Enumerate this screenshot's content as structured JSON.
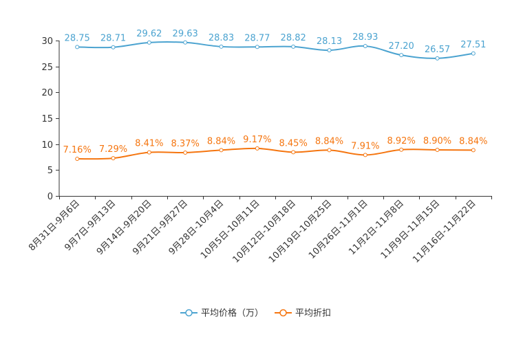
{
  "chart_data": {
    "type": "line",
    "title": "",
    "xlabel": "",
    "ylabel": "",
    "ylim": [
      0,
      30
    ],
    "yticks": [
      0,
      5,
      10,
      15,
      20,
      25,
      30
    ],
    "grid": false,
    "legend_position": "bottom-center",
    "categories": [
      "8月31日-9月6日",
      "9月7日-9月13日",
      "9月14日-9月20日",
      "9月21日-9月27日",
      "9月28日-10月4日",
      "10月5日-10月11日",
      "10月12日-10月18日",
      "10月19日-10月25日",
      "10月26日-11月1日",
      "11月2日-11月8日",
      "11月9日-11月15日",
      "11月16日-11月22日"
    ],
    "series": [
      {
        "name": "平均价格（万）",
        "color": "#4BA3D0",
        "values": [
          28.75,
          28.71,
          29.62,
          29.63,
          28.83,
          28.77,
          28.82,
          28.13,
          28.93,
          27.2,
          26.57,
          27.51
        ],
        "labels": [
          "28.75",
          "28.71",
          "29.62",
          "29.63",
          "28.83",
          "28.77",
          "28.82",
          "28.13",
          "28.93",
          "27.20",
          "26.57",
          "27.51"
        ]
      },
      {
        "name": "平均折扣",
        "color": "#F5750F",
        "values": [
          7.16,
          7.29,
          8.41,
          8.37,
          8.84,
          9.17,
          8.45,
          8.84,
          7.91,
          8.92,
          8.9,
          8.84
        ],
        "labels": [
          "7.16%",
          "7.29%",
          "8.41%",
          "8.37%",
          "8.84%",
          "9.17%",
          "8.45%",
          "8.84%",
          "7.91%",
          "8.92%",
          "8.90%",
          "8.84%"
        ]
      }
    ]
  }
}
